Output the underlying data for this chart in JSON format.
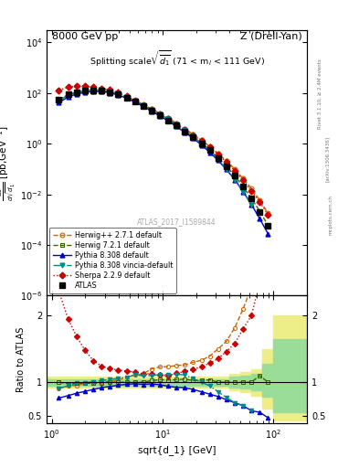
{
  "title_left": "8000 GeV pp",
  "title_right": "Z (Drell-Yan)",
  "watermark": "ATLAS_2017_I1589844",
  "rivet_text": "Rivet 3.1.10, ≥ 2.4M events",
  "arxiv_text": "[arXiv:1306.3436]",
  "mcplots_text": "mcplots.cern.ch",
  "atlas_x": [
    1.16,
    1.41,
    1.68,
    2.0,
    2.37,
    2.82,
    3.35,
    3.98,
    4.73,
    5.62,
    6.68,
    7.94,
    9.44,
    11.2,
    13.3,
    15.8,
    18.8,
    22.4,
    26.6,
    31.6,
    37.6,
    44.7,
    53.1,
    63.1,
    75.0,
    89.1
  ],
  "atlas_y": [
    55,
    90,
    110,
    125,
    130,
    125,
    110,
    88,
    65,
    46,
    31,
    20,
    13,
    8.5,
    5.2,
    3.1,
    1.85,
    1.05,
    0.56,
    0.28,
    0.13,
    0.055,
    0.02,
    0.007,
    0.002,
    0.0006
  ],
  "herwig271_x": [
    1.16,
    1.41,
    1.68,
    2.0,
    2.37,
    2.82,
    3.35,
    3.98,
    4.73,
    5.62,
    6.68,
    7.94,
    9.44,
    11.2,
    13.3,
    15.8,
    18.8,
    22.4,
    26.6,
    31.6,
    37.6,
    44.7,
    53.1,
    63.1,
    75.0,
    89.1
  ],
  "herwig271_y": [
    50,
    85,
    105,
    123,
    128,
    125,
    112,
    91,
    70,
    51,
    35,
    24,
    16,
    10.5,
    6.5,
    3.9,
    2.4,
    1.4,
    0.78,
    0.42,
    0.21,
    0.1,
    0.042,
    0.017,
    0.006,
    0.0018
  ],
  "herwig721_x": [
    1.16,
    1.41,
    1.68,
    2.0,
    2.37,
    2.82,
    3.35,
    3.98,
    4.73,
    5.62,
    6.68,
    7.94,
    9.44,
    11.2,
    13.3,
    15.8,
    18.8,
    22.4,
    26.6,
    31.6,
    37.6,
    44.7,
    53.1,
    63.1,
    75.0,
    89.1
  ],
  "herwig721_y": [
    55,
    88,
    108,
    123,
    128,
    124,
    110,
    88,
    65,
    46,
    31,
    20.5,
    13.5,
    8.8,
    5.4,
    3.25,
    1.9,
    1.08,
    0.58,
    0.28,
    0.13,
    0.055,
    0.02,
    0.007,
    0.0022,
    0.0006
  ],
  "pythia8_x": [
    1.16,
    1.41,
    1.68,
    2.0,
    2.37,
    2.82,
    3.35,
    3.98,
    4.73,
    5.62,
    6.68,
    7.94,
    9.44,
    11.2,
    13.3,
    15.8,
    18.8,
    22.4,
    26.6,
    31.6,
    37.6,
    44.7,
    53.1,
    63.1,
    75.0,
    89.1
  ],
  "pythia8_y": [
    42,
    72,
    92,
    108,
    116,
    115,
    103,
    84,
    63,
    45,
    30,
    19.5,
    12.5,
    8.0,
    4.8,
    2.85,
    1.65,
    0.9,
    0.46,
    0.22,
    0.096,
    0.038,
    0.013,
    0.004,
    0.0011,
    0.00028
  ],
  "vincia_x": [
    1.16,
    1.41,
    1.68,
    2.0,
    2.37,
    2.82,
    3.35,
    3.98,
    4.73,
    5.62,
    6.68,
    7.94,
    9.44,
    11.2,
    13.3,
    15.8,
    18.8,
    22.4,
    26.6,
    31.6,
    37.6,
    44.7,
    53.1,
    63.1
  ],
  "vincia_y": [
    50,
    85,
    108,
    124,
    131,
    128,
    115,
    93,
    70,
    51,
    34,
    22,
    14.5,
    9.5,
    5.8,
    3.45,
    1.95,
    1.05,
    0.53,
    0.24,
    0.1,
    0.038,
    0.013,
    0.004
  ],
  "sherpa_x": [
    1.16,
    1.41,
    1.68,
    2.0,
    2.37,
    2.82,
    3.35,
    3.98,
    4.73,
    5.62,
    6.68,
    7.94,
    9.44,
    11.2,
    13.3,
    15.8,
    18.8,
    22.4,
    26.6,
    31.6,
    37.6,
    44.7,
    53.1,
    63.1,
    75.0,
    89.1
  ],
  "sherpa_y": [
    130,
    175,
    185,
    185,
    172,
    155,
    133,
    104,
    76,
    53,
    35,
    22.5,
    14.5,
    9.3,
    5.9,
    3.6,
    2.2,
    1.3,
    0.72,
    0.38,
    0.19,
    0.087,
    0.036,
    0.014,
    0.005,
    0.0016
  ],
  "ratio_herwig271_y": [
    0.91,
    0.944,
    0.954,
    0.984,
    0.985,
    1.0,
    1.018,
    1.034,
    1.077,
    1.109,
    1.129,
    1.2,
    1.23,
    1.235,
    1.25,
    1.26,
    1.3,
    1.33,
    1.393,
    1.5,
    1.615,
    1.818,
    2.1,
    2.43,
    3.0,
    3.0
  ],
  "ratio_herwig721_y": [
    1.0,
    0.978,
    0.982,
    0.984,
    0.985,
    0.992,
    1.0,
    1.0,
    1.0,
    1.0,
    1.0,
    1.025,
    1.038,
    1.035,
    1.038,
    1.048,
    1.027,
    1.029,
    1.036,
    1.0,
    1.0,
    1.0,
    1.0,
    1.0,
    1.1,
    1.0
  ],
  "ratio_pythia8_y": [
    0.764,
    0.8,
    0.836,
    0.864,
    0.892,
    0.92,
    0.936,
    0.955,
    0.969,
    0.978,
    0.968,
    0.975,
    0.962,
    0.941,
    0.923,
    0.919,
    0.892,
    0.857,
    0.821,
    0.786,
    0.738,
    0.691,
    0.65,
    0.571,
    0.55,
    0.467
  ],
  "ratio_vincia_y": [
    0.909,
    0.944,
    0.982,
    0.992,
    1.008,
    1.024,
    1.045,
    1.057,
    1.077,
    1.109,
    1.097,
    1.1,
    1.115,
    1.118,
    1.115,
    1.113,
    1.054,
    1.0,
    0.946,
    0.857,
    0.769,
    0.691,
    0.65,
    0.571
  ],
  "ratio_sherpa_y": [
    2.364,
    1.944,
    1.682,
    1.48,
    1.323,
    1.24,
    1.209,
    1.182,
    1.169,
    1.152,
    1.129,
    1.125,
    1.115,
    1.094,
    1.135,
    1.161,
    1.189,
    1.238,
    1.286,
    1.357,
    1.462,
    1.582,
    1.8,
    2.0,
    2.5,
    2.67
  ],
  "atlas_band_x_edges": [
    0.9,
    1.0,
    1.26,
    1.58,
    2.0,
    2.51,
    3.16,
    3.98,
    5.01,
    6.31,
    7.94,
    10.0,
    12.6,
    15.8,
    20.0,
    25.1,
    31.6,
    39.8,
    50.1,
    63.1,
    79.4,
    100.0,
    126.0,
    158.0,
    200.0
  ],
  "atlas_band_inner_low": [
    0.95,
    0.95,
    0.95,
    0.95,
    0.95,
    0.95,
    0.95,
    0.95,
    0.95,
    0.95,
    0.95,
    0.95,
    0.95,
    0.95,
    0.95,
    0.95,
    0.95,
    0.92,
    0.9,
    0.88,
    0.78,
    0.55,
    0.55,
    0.55
  ],
  "atlas_band_inner_high": [
    1.05,
    1.05,
    1.05,
    1.05,
    1.05,
    1.05,
    1.05,
    1.05,
    1.05,
    1.05,
    1.05,
    1.05,
    1.05,
    1.05,
    1.05,
    1.05,
    1.05,
    1.08,
    1.1,
    1.12,
    1.28,
    1.65,
    1.65,
    1.65
  ],
  "atlas_band_outer_low": [
    0.92,
    0.92,
    0.92,
    0.92,
    0.92,
    0.92,
    0.92,
    0.92,
    0.92,
    0.92,
    0.92,
    0.92,
    0.92,
    0.92,
    0.92,
    0.92,
    0.92,
    0.88,
    0.85,
    0.8,
    0.6,
    0.42,
    0.42,
    0.42
  ],
  "atlas_band_outer_high": [
    1.08,
    1.08,
    1.08,
    1.08,
    1.08,
    1.08,
    1.08,
    1.08,
    1.08,
    1.08,
    1.08,
    1.08,
    1.08,
    1.08,
    1.08,
    1.08,
    1.08,
    1.12,
    1.15,
    1.2,
    1.5,
    2.0,
    2.0,
    2.0
  ],
  "atlas_color": "black",
  "herwig271_color": "#cc6600",
  "herwig721_color": "#336600",
  "pythia8_color": "#0000cc",
  "vincia_color": "#008888",
  "sherpa_color": "#cc0000",
  "band_inner_color": "#99dd99",
  "band_outer_color": "#eeee88",
  "xlim": [
    0.9,
    200.0
  ],
  "ylim_main": [
    1e-06,
    30000.0
  ],
  "ylim_ratio": [
    0.38,
    2.3
  ]
}
